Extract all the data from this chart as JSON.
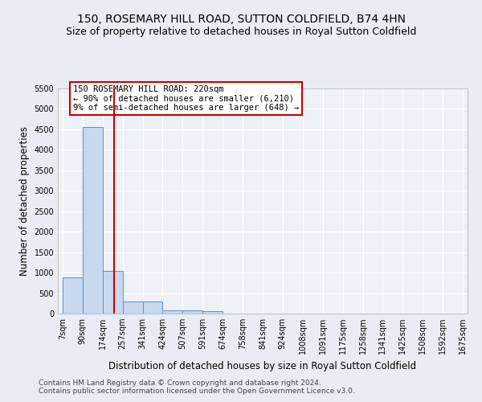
{
  "title1": "150, ROSEMARY HILL ROAD, SUTTON COLDFIELD, B74 4HN",
  "title2": "Size of property relative to detached houses in Royal Sutton Coldfield",
  "xlabel": "Distribution of detached houses by size in Royal Sutton Coldfield",
  "ylabel": "Number of detached properties",
  "footer1": "Contains HM Land Registry data © Crown copyright and database right 2024.",
  "footer2": "Contains public sector information licensed under the Open Government Licence v3.0.",
  "bin_edges": [
    7,
    90,
    174,
    257,
    341,
    424,
    507,
    591,
    674,
    758,
    841,
    924,
    1008,
    1091,
    1175,
    1258,
    1341,
    1425,
    1508,
    1592,
    1675
  ],
  "bar_heights": [
    880,
    4560,
    1050,
    290,
    290,
    80,
    80,
    50,
    0,
    0,
    0,
    0,
    0,
    0,
    0,
    0,
    0,
    0,
    0,
    0
  ],
  "bar_color": "#c8d8ee",
  "bar_edge_color": "#6090c0",
  "vline_x": 220,
  "vline_color": "#cc0000",
  "annotation_text": "150 ROSEMARY HILL ROAD: 220sqm\n← 90% of detached houses are smaller (6,210)\n9% of semi-detached houses are larger (648) →",
  "annotation_box_color": "#cc0000",
  "annotation_fill": "white",
  "ylim": [
    0,
    5500
  ],
  "yticks": [
    0,
    500,
    1000,
    1500,
    2000,
    2500,
    3000,
    3500,
    4000,
    4500,
    5000,
    5500
  ],
  "bg_color": "#e8edf5",
  "plot_bg_color": "#edf1f8",
  "grid_color": "#ffffff",
  "title1_fontsize": 10,
  "title2_fontsize": 9,
  "xlabel_fontsize": 8.5,
  "ylabel_fontsize": 8.5,
  "tick_fontsize": 7,
  "footer_fontsize": 6.5
}
